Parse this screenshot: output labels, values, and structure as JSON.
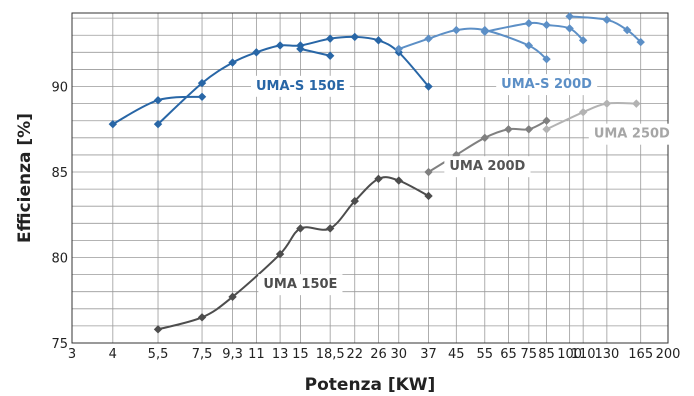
{
  "chart_data": {
    "type": "line",
    "title": "",
    "xlabel": "Potenza [KW]",
    "ylabel": "Efficienza [%]",
    "x_scale": "log",
    "xlim": [
      3,
      200
    ],
    "ylim": [
      75,
      94.3
    ],
    "x_ticks": [
      3,
      4,
      5.5,
      7.5,
      9.3,
      11,
      13,
      15,
      18.5,
      22,
      26,
      30,
      37,
      45,
      55,
      65,
      75,
      85,
      100,
      110,
      130,
      165,
      200
    ],
    "x_tick_labels": [
      "3",
      "4",
      "5,5",
      "7,5",
      "9,3",
      "11",
      "13",
      "15",
      "18,5",
      "22",
      "26",
      "30",
      "37",
      "45",
      "55",
      "65",
      "75",
      "85",
      "100",
      "110",
      "130",
      "165",
      "200"
    ],
    "y_ticks": [
      75,
      80,
      85,
      90
    ],
    "y_tick_labels": [
      "75",
      "80",
      "85",
      "90"
    ],
    "grid": true,
    "legend": "inline labels",
    "series": [
      {
        "name": "UMA-S 150E",
        "color": "#2866a6",
        "label_color": "#2866a6",
        "label_bg": "#ffffff",
        "points": [
          [
            4,
            87.8
          ],
          [
            5.5,
            89.2
          ],
          [
            7.5,
            89.4
          ]
        ]
      },
      {
        "name": "",
        "color": "#2866a6",
        "points": [
          [
            5.5,
            87.8
          ],
          [
            7.5,
            90.2
          ],
          [
            9.3,
            91.4
          ],
          [
            11,
            92.0
          ],
          [
            13,
            92.4
          ],
          [
            15,
            92.4
          ],
          [
            18.5,
            92.8
          ],
          [
            22,
            92.9
          ],
          [
            26,
            92.7
          ],
          [
            30,
            92.0
          ],
          [
            37,
            90.0
          ]
        ]
      },
      {
        "name": "",
        "color": "#2866a6",
        "points": [
          [
            15,
            92.2
          ],
          [
            18.5,
            91.8
          ]
        ]
      },
      {
        "name": "UMA-S 200D",
        "color": "#5c8fc6",
        "label_color": "#5c8fc6",
        "label_bg": "#ffffff",
        "points": [
          [
            30,
            92.2
          ],
          [
            37,
            92.8
          ],
          [
            45,
            93.3
          ],
          [
            55,
            93.3
          ],
          [
            75,
            92.4
          ],
          [
            85,
            91.6
          ]
        ]
      },
      {
        "name": "",
        "color": "#5c8fc6",
        "points": [
          [
            55,
            93.2
          ],
          [
            75,
            93.7
          ],
          [
            85,
            93.6
          ],
          [
            100,
            93.4
          ],
          [
            110,
            92.7
          ]
        ]
      },
      {
        "name": "",
        "color": "#5c8fc6",
        "points": [
          [
            100,
            94.1
          ],
          [
            130,
            93.9
          ],
          [
            150,
            93.3
          ],
          [
            165,
            92.6
          ]
        ]
      },
      {
        "name": "UMA 150E",
        "color": "#4d4d4d",
        "label_color": "#4d4d4d",
        "label_bg": "#ffffff",
        "points": [
          [
            5.5,
            75.8
          ],
          [
            7.5,
            76.5
          ],
          [
            9.3,
            77.7
          ],
          [
            13,
            80.2
          ],
          [
            15,
            81.7
          ],
          [
            18.5,
            81.7
          ],
          [
            22,
            83.3
          ],
          [
            26,
            84.6
          ],
          [
            30,
            84.5
          ],
          [
            37,
            83.6
          ]
        ]
      },
      {
        "name": "UMA 200D",
        "color": "#808080",
        "label_color": "#555555",
        "label_bg": "#ffffff",
        "points": [
          [
            37,
            85.0
          ],
          [
            45,
            86.0
          ],
          [
            55,
            87.0
          ],
          [
            65,
            87.5
          ],
          [
            75,
            87.5
          ],
          [
            85,
            88.0
          ]
        ]
      },
      {
        "name": "UMA 250D",
        "color": "#b3b3b3",
        "label_color": "#a6a6a6",
        "label_bg": "#ffffff",
        "points": [
          [
            85,
            87.5
          ],
          [
            110,
            88.5
          ],
          [
            130,
            89.0
          ],
          [
            160,
            89.0
          ]
        ]
      }
    ],
    "annotations": [
      {
        "text": "UMA-S 150E",
        "series": 0,
        "at": [
          15,
          90.1
        ]
      },
      {
        "text": "UMA-S 200D",
        "series": 3,
        "at": [
          85,
          90.2
        ]
      },
      {
        "text": "UMA 250D",
        "series": 8,
        "at": [
          155,
          87.3
        ]
      },
      {
        "text": "UMA 200D",
        "series": 7,
        "at": [
          56,
          85.4
        ]
      },
      {
        "text": "UMA 150E",
        "series": 6,
        "at": [
          15,
          78.5
        ]
      }
    ]
  }
}
